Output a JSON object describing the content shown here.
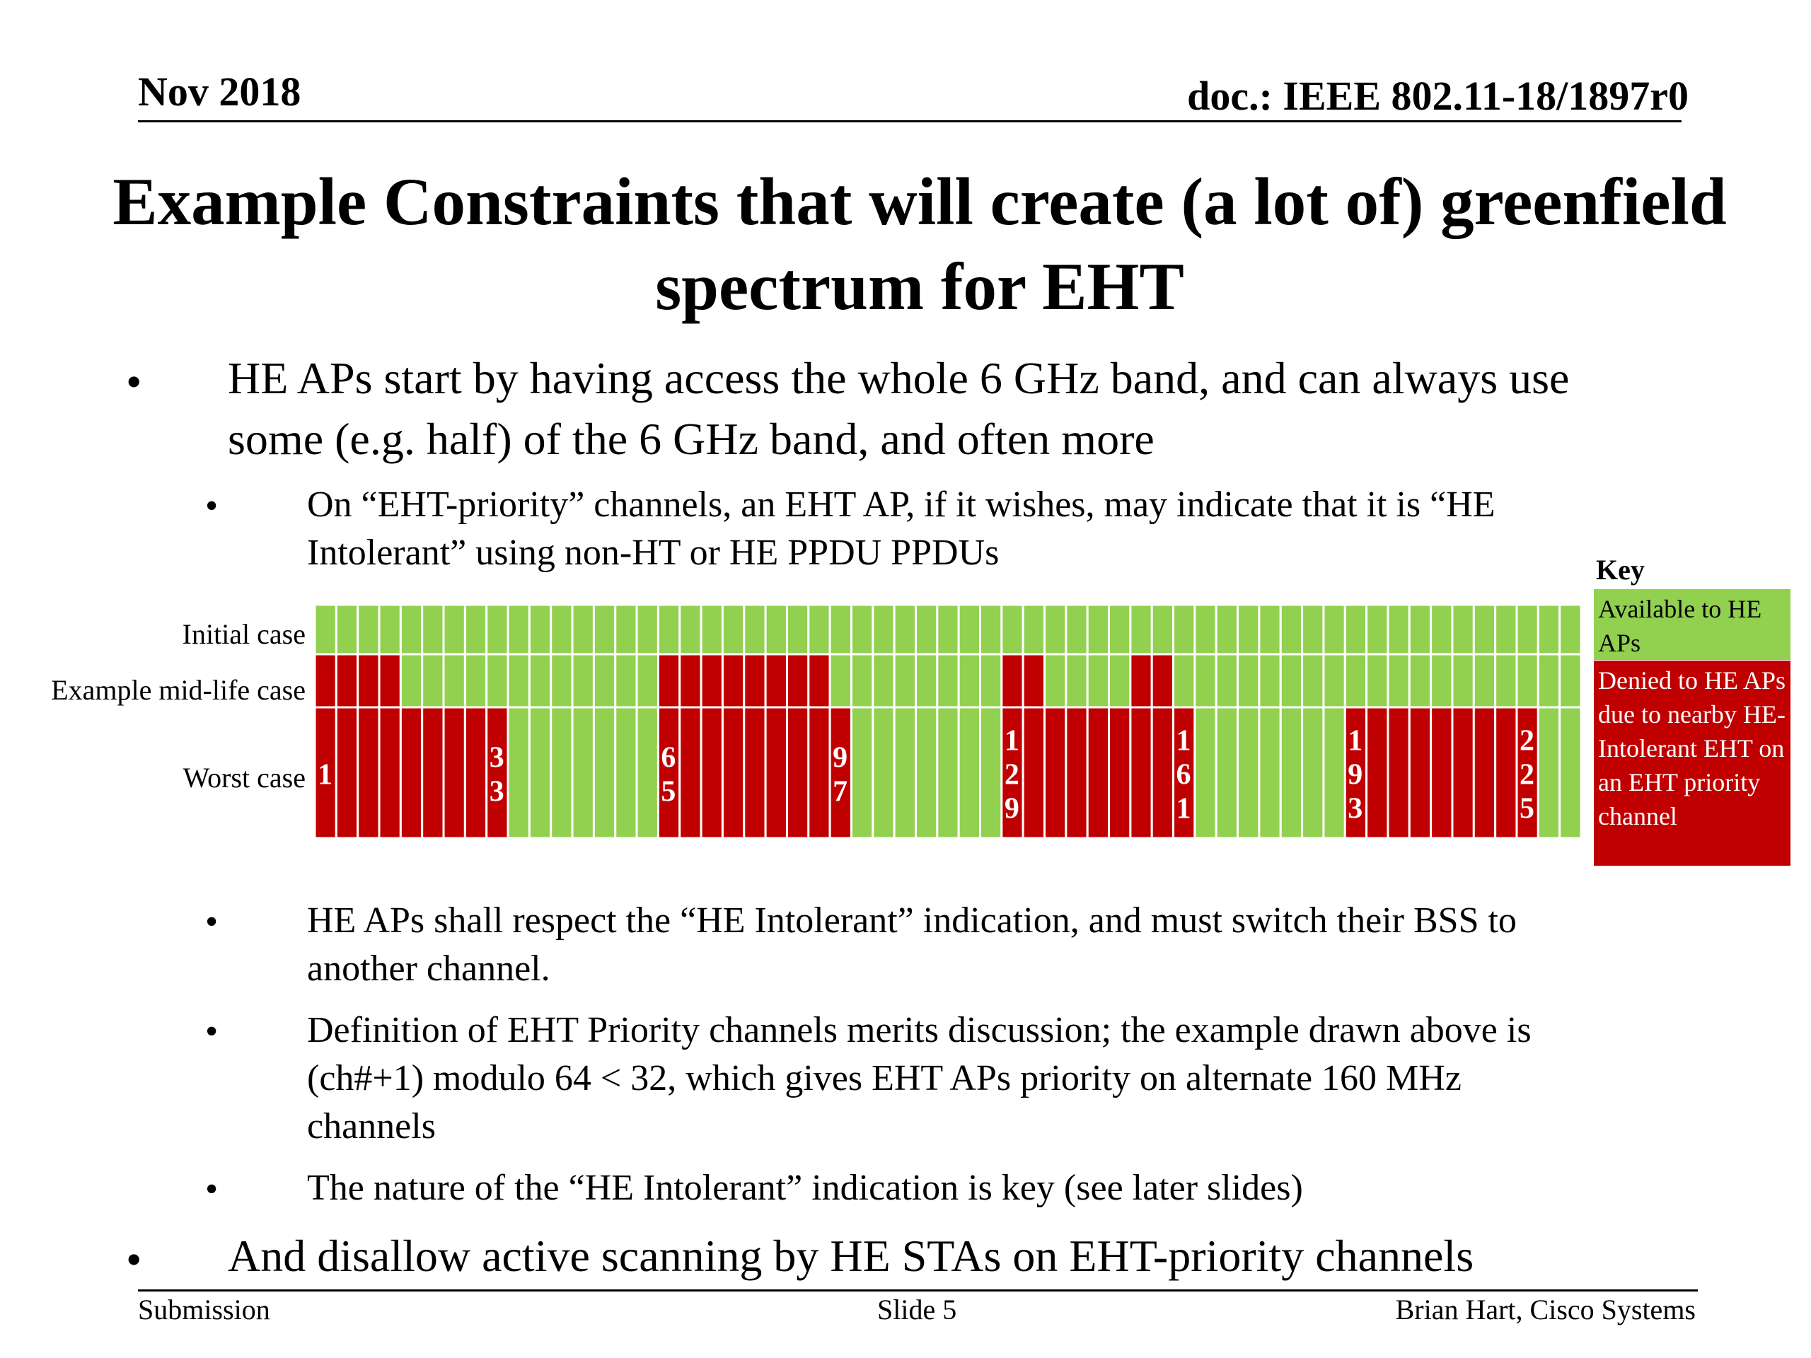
{
  "header": {
    "date": "Nov 2018",
    "doc": "doc.: IEEE 802.11-18/1897r0"
  },
  "title": {
    "line1": "Example Constraints that will create (a lot of) greenfield",
    "line2": "spectrum for EHT"
  },
  "bullets": {
    "b1_line1": "HE APs start by having access the whole 6 GHz band, and can always use",
    "b1_line2": "some (e.g. half) of the 6 GHz band, and often more",
    "b1a_line1": "On “EHT-priority” channels, an EHT AP, if it wishes, may indicate that it is “HE",
    "b1a_line2": "Intolerant” using non-HT or HE PPDU PPDUs",
    "b1b_line1": "HE APs shall respect the “HE Intolerant” indication, and must switch their BSS to",
    "b1b_line2": "another channel.",
    "b1c_line1": "Definition of EHT Priority channels merits discussion; the example drawn above is",
    "b1c_line2": "(ch#+1) modulo 64 <  32, which gives EHT APs priority on alternate 160 MHz",
    "b1c_line3": "channels",
    "b1d_line1": "The nature of the “HE Intolerant” indication is key (see later slides)",
    "b2_line1": "And disallow active scanning by HE STAs on EHT-priority channels",
    "bullet_symbol": "•"
  },
  "key": {
    "title": "Key",
    "available": "Available to HE APs",
    "denied": "Denied to HE APs due to nearby HE-Intolerant EHT on an EHT priority channel"
  },
  "chart_data": {
    "type": "heatmap",
    "rows": [
      "Initial case",
      "Example mid-life case",
      "Worst case"
    ],
    "num_channels": 59,
    "colors": {
      "available": "#92d050",
      "denied": "#c00000",
      "separator": "#ffffff"
    },
    "legend_placement": "right",
    "denied_ranges_by_row": {
      "Initial case": [],
      "Example mid-life case": [
        [
          0,
          3
        ],
        [
          16,
          23
        ],
        [
          32,
          33
        ],
        [
          38,
          39
        ]
      ],
      "Worst case": [
        [
          0,
          8
        ],
        [
          16,
          24
        ],
        [
          32,
          40
        ],
        [
          48,
          56
        ]
      ]
    },
    "channel_labels": [
      {
        "col": 0,
        "text": "1",
        "on": "denied"
      },
      {
        "col": 8,
        "text": "33",
        "on": "available"
      },
      {
        "col": 16,
        "text": "65",
        "on": "denied"
      },
      {
        "col": 24,
        "text": "97",
        "on": "available"
      },
      {
        "col": 32,
        "text": "129",
        "on": "denied"
      },
      {
        "col": 40,
        "text": "161",
        "on": "available"
      },
      {
        "col": 48,
        "text": "193",
        "on": "denied"
      },
      {
        "col": 56,
        "text": "225",
        "on": "available"
      }
    ]
  },
  "footer": {
    "left": "Submission",
    "center": "Slide 5",
    "right": "Brian Hart, Cisco Systems"
  }
}
